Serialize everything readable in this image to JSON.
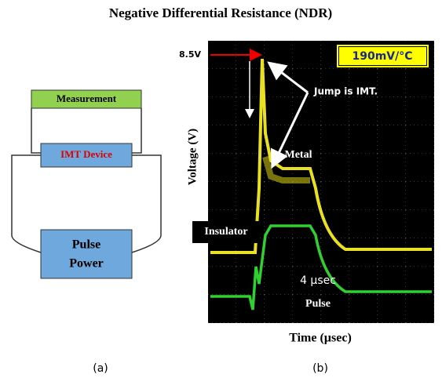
{
  "title": "Negative Differential Resistance (NDR)",
  "circuit": {
    "measurement": "Measurement",
    "device": "IMT Device",
    "power": [
      "Pulse",
      "Power"
    ]
  },
  "scope": {
    "voltage_marker": "8.5V",
    "scale": "190mV/°C",
    "annotation": "Jump is IMT.",
    "y_label": "Voltage (V)",
    "metal": "Metal",
    "insulator": "Insulator",
    "pulse_width": "4 µsec",
    "pulse": "Pulse",
    "x_label": "Time (µsec)"
  },
  "captions": [
    "(a)",
    "(b)"
  ]
}
